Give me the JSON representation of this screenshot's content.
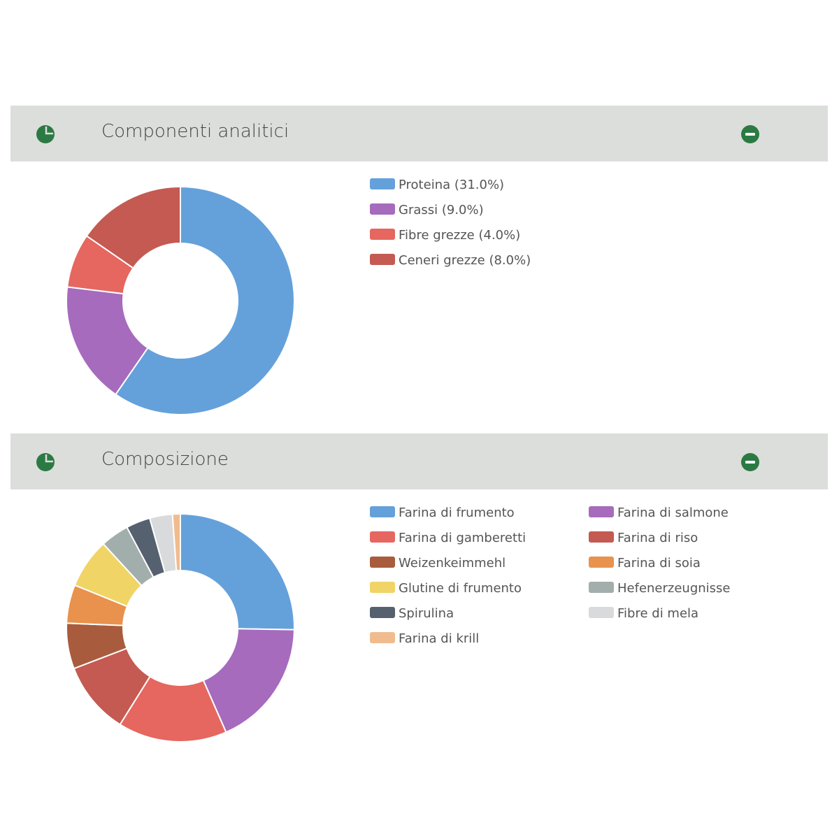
{
  "chart_data": [
    {
      "type": "pie",
      "title": "Componenti analitici",
      "donut": true,
      "categories": [
        "Proteina (31.0%)",
        "Grassi (9.0%)",
        "Fibre grezze (4.0%)",
        "Ceneri grezze (8.0%)"
      ],
      "values": [
        31.0,
        9.0,
        4.0,
        8.0
      ],
      "colors": [
        "#64a1db",
        "#a66bbd",
        "#e5675f",
        "#c45a52"
      ],
      "legend": "right"
    },
    {
      "type": "pie",
      "title": "Composizione",
      "donut": true,
      "categories": [
        "Farina di frumento",
        "Farina di salmone",
        "Farina di gamberetti",
        "Farina di riso",
        "Weizenkeimmehl",
        "Farina di soia",
        "Glutine di frumento",
        "Hefenerzeugnisse",
        "Spirulina",
        "Fibre di mela",
        "Farina di krill"
      ],
      "values": [
        25,
        18,
        15.3,
        10.2,
        6.4,
        5.4,
        7,
        4,
        3.4,
        3.2,
        1.1
      ],
      "colors": [
        "#64a1db",
        "#a66bbd",
        "#e5675f",
        "#c45a52",
        "#a85c3d",
        "#e8924e",
        "#f0d466",
        "#a2aeab",
        "#56616f",
        "#d8dadb",
        "#f0bc8f"
      ],
      "legend": "right"
    }
  ]
}
